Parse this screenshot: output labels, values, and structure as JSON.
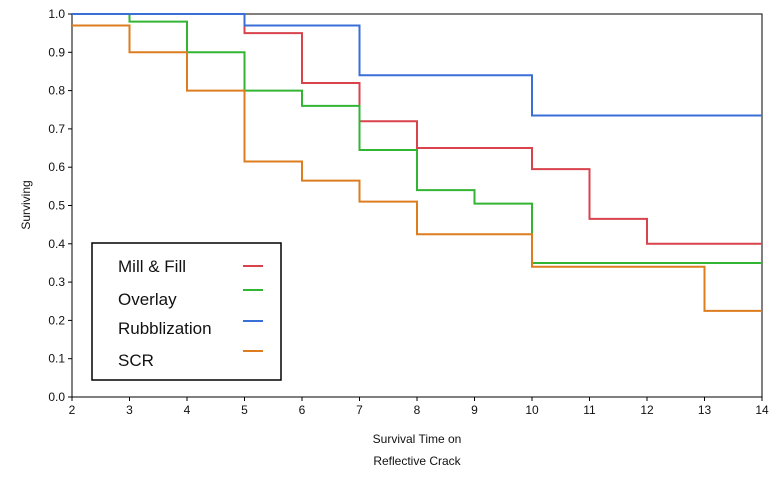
{
  "chart_data": {
    "type": "line",
    "step": true,
    "xlabel_lines": [
      "Survival Time on",
      "Reflective Crack"
    ],
    "ylabel": "Surviving",
    "xlim": [
      2,
      14
    ],
    "ylim": [
      0.0,
      1.0
    ],
    "x_ticks": [
      2,
      3,
      4,
      5,
      6,
      7,
      8,
      9,
      10,
      11,
      12,
      13,
      14
    ],
    "x_tick_labels": [
      "2",
      "3",
      "4",
      "5",
      "6",
      "7",
      "8",
      "9",
      "10",
      "11",
      "12",
      "13",
      "14"
    ],
    "y_ticks": [
      0.0,
      0.1,
      0.2,
      0.3,
      0.4,
      0.5,
      0.6,
      0.7,
      0.8,
      0.9,
      1.0
    ],
    "y_tick_labels": [
      "0.0",
      "0.1",
      "0.2",
      "0.3",
      "0.4",
      "0.5",
      "0.6",
      "0.7",
      "0.8",
      "0.9",
      "1.0"
    ],
    "grid": false,
    "legend_position": "bottom-left",
    "series": [
      {
        "name": "Mill & Fill",
        "color": "#d9434c",
        "points": [
          [
            2,
            1.0
          ],
          [
            5,
            0.95
          ],
          [
            6,
            0.82
          ],
          [
            7,
            0.72
          ],
          [
            8,
            0.65
          ],
          [
            10,
            0.595
          ],
          [
            11,
            0.465
          ],
          [
            12,
            0.4
          ],
          [
            14,
            0.4
          ]
        ]
      },
      {
        "name": "Overlay",
        "color": "#33b534",
        "points": [
          [
            2,
            1.0
          ],
          [
            3,
            0.98
          ],
          [
            4,
            0.9
          ],
          [
            5,
            0.8
          ],
          [
            6,
            0.76
          ],
          [
            7,
            0.645
          ],
          [
            8,
            0.54
          ],
          [
            9,
            0.505
          ],
          [
            10,
            0.35
          ],
          [
            14,
            0.35
          ]
        ]
      },
      {
        "name": "Rubblization",
        "color": "#3a6fd8",
        "points": [
          [
            2,
            1.0
          ],
          [
            5,
            0.97
          ],
          [
            7,
            0.84
          ],
          [
            10,
            0.735
          ],
          [
            14,
            0.735
          ]
        ]
      },
      {
        "name": "SCR",
        "color": "#dd7d1f",
        "points": [
          [
            2,
            0.97
          ],
          [
            3,
            0.9
          ],
          [
            4,
            0.8
          ],
          [
            5,
            0.615
          ],
          [
            6,
            0.565
          ],
          [
            7,
            0.51
          ],
          [
            8,
            0.425
          ],
          [
            10,
            0.34
          ],
          [
            13,
            0.225
          ],
          [
            14,
            0.225
          ]
        ]
      }
    ]
  }
}
